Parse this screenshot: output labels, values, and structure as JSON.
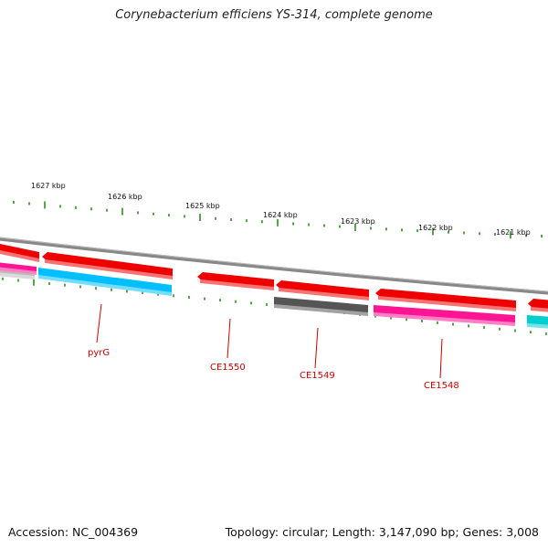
{
  "title": "Corynebacterium efficiens YS-314, complete genome",
  "footer": {
    "accession": "Accession: NC_004369",
    "summary": "Topology: circular; Length: 3,147,090 bp; Genes: 3,008"
  },
  "scale_labels": [
    "1627 kbp",
    "1626 kbp",
    "1625 kbp",
    "1624 kbp",
    "1623 kbp",
    "1622 kbp",
    "1621 kbp"
  ],
  "gene_labels": [
    "pyrG",
    "CE1550",
    "CE1549",
    "CE1548"
  ],
  "colors": {
    "cds_red": "#ee0000",
    "cds_pink": "#ff1493",
    "cds_blue": "#00bfff",
    "cds_gray": "#555555",
    "cds_teal": "#00ced1",
    "backbone": "#888888",
    "tick": "#2e8b22",
    "label": "#cc0000"
  }
}
